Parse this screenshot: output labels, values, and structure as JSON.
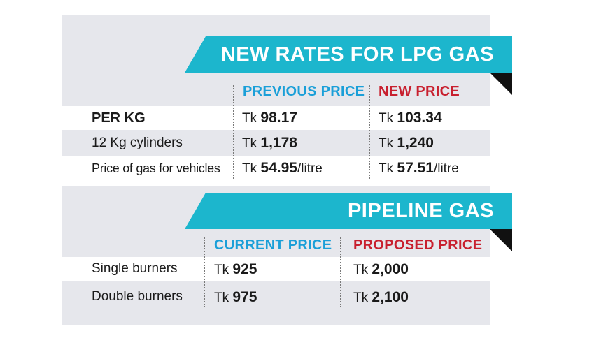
{
  "lpg": {
    "title": "NEW RATES FOR LPG GAS",
    "col_previous": "PREVIOUS PRICE",
    "col_new": "NEW PRICE",
    "rows": [
      {
        "label": "PER KG",
        "prev_cur": "Tk",
        "prev_val": "98.17",
        "prev_unit": "",
        "new_cur": "Tk",
        "new_val": "103.34",
        "new_unit": ""
      },
      {
        "label": "12 Kg cylinders",
        "prev_cur": "Tk",
        "prev_val": "1,178",
        "prev_unit": "",
        "new_cur": "Tk",
        "new_val": "1,240",
        "new_unit": ""
      },
      {
        "label": "Price of gas for vehicles",
        "prev_cur": "Tk",
        "prev_val": "54.95",
        "prev_unit": "/litre",
        "new_cur": "Tk",
        "new_val": "57.51",
        "new_unit": "/litre"
      }
    ]
  },
  "pipeline": {
    "title": "PIPELINE GAS",
    "col_current": "CURRENT PRICE",
    "col_proposed": "PROPOSED PRICE",
    "rows": [
      {
        "label": "Single burners",
        "cur_cur": "Tk",
        "cur_val": "925",
        "prop_cur": "Tk",
        "prop_val": "2,000"
      },
      {
        "label": "Double burners",
        "cur_cur": "Tk",
        "cur_val": "975",
        "prop_cur": "Tk",
        "prop_val": "2,100"
      }
    ]
  },
  "colors": {
    "banner": "#1cb6cd",
    "header_previous": "#1a9fd8",
    "header_new": "#c8202f",
    "panel": "#e6e7ec"
  }
}
